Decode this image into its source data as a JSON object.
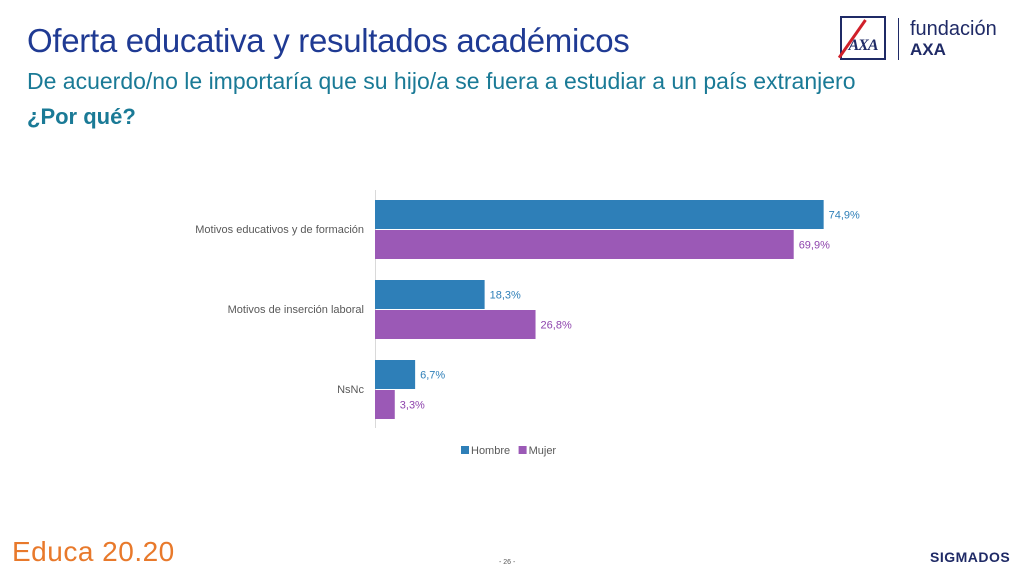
{
  "header": {
    "title": "Oferta educativa y resultados académicos",
    "subtitle": "De acuerdo/no le importaría que su hijo/a se fuera a estudiar a un país extranjero",
    "question": "¿Por qué?"
  },
  "logo": {
    "mark_text": "AXA",
    "line1": "fundación",
    "line2": "AXA"
  },
  "chart_data": {
    "type": "bar",
    "orientation": "horizontal",
    "categories": [
      "Motivos educativos y de formación",
      "Motivos de inserción laboral",
      "NsNc"
    ],
    "series": [
      {
        "name": "Hombre",
        "values": [
          74.9,
          18.3,
          6.7
        ],
        "labels": [
          "74,9%",
          "18,3%",
          "6,7%"
        ],
        "color": "#2e7fb8",
        "label_color": "#2e7fb8"
      },
      {
        "name": "Mujer",
        "values": [
          69.9,
          26.8,
          3.3
        ],
        "labels": [
          "69,9%",
          "26,8%",
          "3,3%"
        ],
        "color": "#9b59b6",
        "label_color": "#8e44ad"
      }
    ],
    "xlim": [
      0,
      100
    ],
    "grid": false,
    "legend_position": "bottom"
  },
  "footer": {
    "brand": "Educa 20.20",
    "page": "- 26 -",
    "right_logo": "SIGMADOS"
  }
}
